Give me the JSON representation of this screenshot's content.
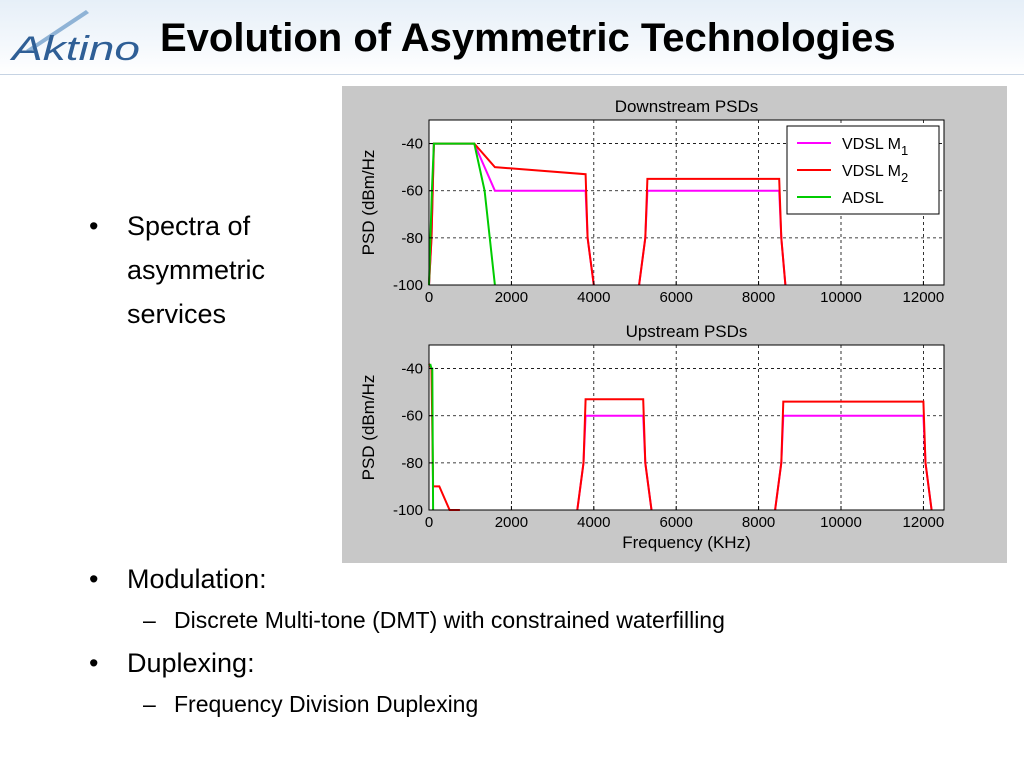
{
  "header": {
    "logo_text": "Aktino",
    "title": "Evolution of Asymmetric Technologies"
  },
  "bullets": {
    "spectra": "Spectra of asymmetric services",
    "modulation": "Modulation:",
    "modulation_sub": "Discrete Multi-tone (DMT) with constrained waterfilling",
    "duplexing": "Duplexing:",
    "duplexing_sub": "Frequency Division Duplexing",
    "bullet_glyph": "•",
    "dash_glyph": "–"
  },
  "chart_data": [
    {
      "type": "line",
      "title": "Downstream PSDs",
      "xlabel": "",
      "ylabel": "PSD (dBm/Hz",
      "xlim": [
        0,
        12500
      ],
      "ylim": [
        -100,
        -30
      ],
      "xticks": [
        0,
        2000,
        4000,
        6000,
        8000,
        10000,
        12000
      ],
      "yticks": [
        -40,
        -60,
        -80,
        -100
      ],
      "grid": true,
      "legend": {
        "position": "top-right",
        "entries": [
          {
            "name": "VDSL M",
            "sub": "1",
            "color": "#ff00ff"
          },
          {
            "name": "VDSL M",
            "sub": "2",
            "color": "#ff0000"
          },
          {
            "name": "ADSL",
            "sub": "",
            "color": "#00cc00"
          }
        ]
      },
      "series": [
        {
          "name": "VDSL M1",
          "color": "#ff00ff",
          "segments": [
            [
              [
                0,
                -100
              ],
              [
                60,
                -80
              ],
              [
                120,
                -40
              ],
              [
                1100,
                -40
              ],
              [
                1600,
                -60
              ],
              [
                3800,
                -60
              ],
              [
                3850,
                -80
              ],
              [
                4000,
                -100
              ]
            ],
            [
              [
                5100,
                -100
              ],
              [
                5250,
                -80
              ],
              [
                5300,
                -60
              ],
              [
                8500,
                -60
              ],
              [
                8550,
                -80
              ],
              [
                8650,
                -100
              ]
            ]
          ]
        },
        {
          "name": "VDSL M2",
          "color": "#ff0000",
          "segments": [
            [
              [
                0,
                -100
              ],
              [
                60,
                -80
              ],
              [
                120,
                -40
              ],
              [
                1100,
                -40
              ],
              [
                1600,
                -50
              ],
              [
                3800,
                -53
              ],
              [
                3850,
                -80
              ],
              [
                4000,
                -100
              ]
            ],
            [
              [
                5100,
                -100
              ],
              [
                5250,
                -80
              ],
              [
                5300,
                -55
              ],
              [
                8500,
                -55
              ],
              [
                8550,
                -80
              ],
              [
                8650,
                -100
              ]
            ]
          ]
        },
        {
          "name": "ADSL",
          "color": "#00cc00",
          "segments": [
            [
              [
                0,
                -100
              ],
              [
                70,
                -60
              ],
              [
                120,
                -40
              ],
              [
                1100,
                -40
              ],
              [
                1350,
                -60
              ],
              [
                1600,
                -100
              ]
            ]
          ]
        }
      ]
    },
    {
      "type": "line",
      "title": "Upstream PSDs",
      "xlabel": "Frequency (KHz)",
      "ylabel": "PSD (dBm/Hz",
      "xlim": [
        0,
        12500
      ],
      "ylim": [
        -100,
        -30
      ],
      "xticks": [
        0,
        2000,
        4000,
        6000,
        8000,
        10000,
        12000
      ],
      "yticks": [
        -40,
        -60,
        -80,
        -100
      ],
      "grid": true,
      "series": [
        {
          "name": "VDSL M1",
          "color": "#ff00ff",
          "segments": [
            [
              [
                3600,
                -100
              ],
              [
                3750,
                -80
              ],
              [
                3800,
                -60
              ],
              [
                5200,
                -60
              ],
              [
                5250,
                -80
              ],
              [
                5400,
                -100
              ]
            ],
            [
              [
                8400,
                -100
              ],
              [
                8550,
                -80
              ],
              [
                8600,
                -60
              ],
              [
                12000,
                -60
              ],
              [
                12050,
                -80
              ],
              [
                12200,
                -100
              ]
            ]
          ]
        },
        {
          "name": "VDSL M2",
          "color": "#ff0000",
          "segments": [
            [
              [
                0,
                -38
              ],
              [
                60,
                -40
              ],
              [
                100,
                -90
              ],
              [
                250,
                -90
              ],
              [
                500,
                -100
              ],
              [
                750,
                -100
              ]
            ],
            [
              [
                3600,
                -100
              ],
              [
                3750,
                -80
              ],
              [
                3800,
                -53
              ],
              [
                5200,
                -53
              ],
              [
                5250,
                -80
              ],
              [
                5400,
                -100
              ]
            ],
            [
              [
                8400,
                -100
              ],
              [
                8550,
                -80
              ],
              [
                8600,
                -54
              ],
              [
                12000,
                -54
              ],
              [
                12050,
                -80
              ],
              [
                12200,
                -100
              ]
            ]
          ]
        },
        {
          "name": "ADSL",
          "color": "#00cc00",
          "segments": [
            [
              [
                30,
                -38
              ],
              [
                60,
                -40
              ],
              [
                80,
                -40
              ],
              [
                100,
                -100
              ]
            ]
          ]
        }
      ]
    }
  ]
}
